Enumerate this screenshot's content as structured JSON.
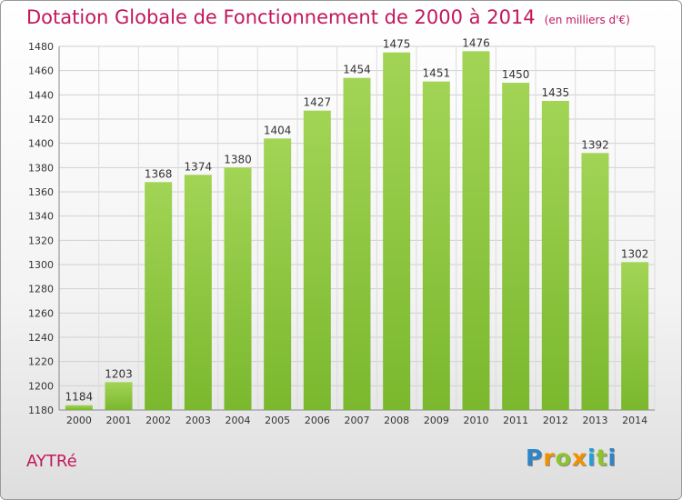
{
  "header": {
    "title": "Dotation Globale de Fonctionnement de 2000 à 2014",
    "unit": "(en milliers d'€)"
  },
  "commune": "AYTRé",
  "logo": {
    "text": "Proxiti",
    "colors": [
      "#2e84c6",
      "#f29100",
      "#8ec42b",
      "#f29100",
      "#1f9fd9",
      "#8ec42b",
      "#2e84c6"
    ]
  },
  "chart_data": {
    "type": "bar",
    "categories": [
      "2000",
      "2001",
      "2002",
      "2003",
      "2004",
      "2005",
      "2006",
      "2007",
      "2008",
      "2009",
      "2010",
      "2011",
      "2012",
      "2013",
      "2014"
    ],
    "values": [
      1184,
      1203,
      1368,
      1374,
      1380,
      1404,
      1427,
      1454,
      1475,
      1451,
      1476,
      1450,
      1435,
      1392,
      1302
    ],
    "title": "Dotation Globale de Fonctionnement de 2000 à 2014",
    "xlabel": "",
    "ylabel": "",
    "ylim": [
      1180,
      1480
    ],
    "yticks": [
      1180,
      1200,
      1220,
      1240,
      1260,
      1280,
      1300,
      1320,
      1340,
      1360,
      1380,
      1400,
      1420,
      1440,
      1460,
      1480
    ],
    "grid": true,
    "bar_color": "#7ab82e",
    "bar_color_light": "#a2d455"
  }
}
